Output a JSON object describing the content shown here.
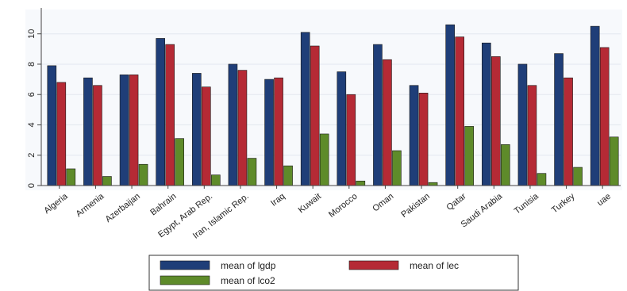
{
  "chart_data": {
    "type": "bar",
    "categories": [
      "Algeria",
      "Armenia",
      "Azerbaijan",
      "Bahrain",
      "Egypt, Arab Rep.",
      "Iran, Islamic Rep.",
      "Iraq",
      "Kuwait",
      "Morocco",
      "Oman",
      "Pakistan",
      "Qatar",
      "Saudi Arabia",
      "Tunisia",
      "Turkey",
      "uae"
    ],
    "series": [
      {
        "name": "mean of lgdp",
        "color": "#1f3e78",
        "values": [
          7.9,
          7.1,
          7.3,
          9.7,
          7.4,
          8.0,
          7.0,
          10.1,
          7.5,
          9.3,
          6.6,
          10.6,
          9.4,
          8.0,
          8.7,
          10.5
        ]
      },
      {
        "name": "mean of lec",
        "color": "#b52a35",
        "values": [
          6.8,
          6.6,
          7.3,
          9.3,
          6.5,
          7.6,
          7.1,
          9.2,
          6.0,
          8.3,
          6.1,
          9.8,
          8.5,
          6.6,
          7.1,
          9.1
        ]
      },
      {
        "name": "mean of lco2",
        "color": "#5e8b2a",
        "values": [
          1.1,
          0.6,
          1.4,
          3.1,
          0.7,
          1.8,
          1.3,
          3.4,
          0.3,
          2.3,
          0.2,
          3.9,
          2.7,
          0.8,
          1.2,
          3.2
        ]
      }
    ],
    "yticks": [
      "0",
      "2",
      "4",
      "6",
      "8",
      "10"
    ],
    "ylim": [
      0,
      11.5
    ],
    "grid": true,
    "legend_position": "bottom",
    "title": "",
    "xlabel": "",
    "ylabel": ""
  }
}
